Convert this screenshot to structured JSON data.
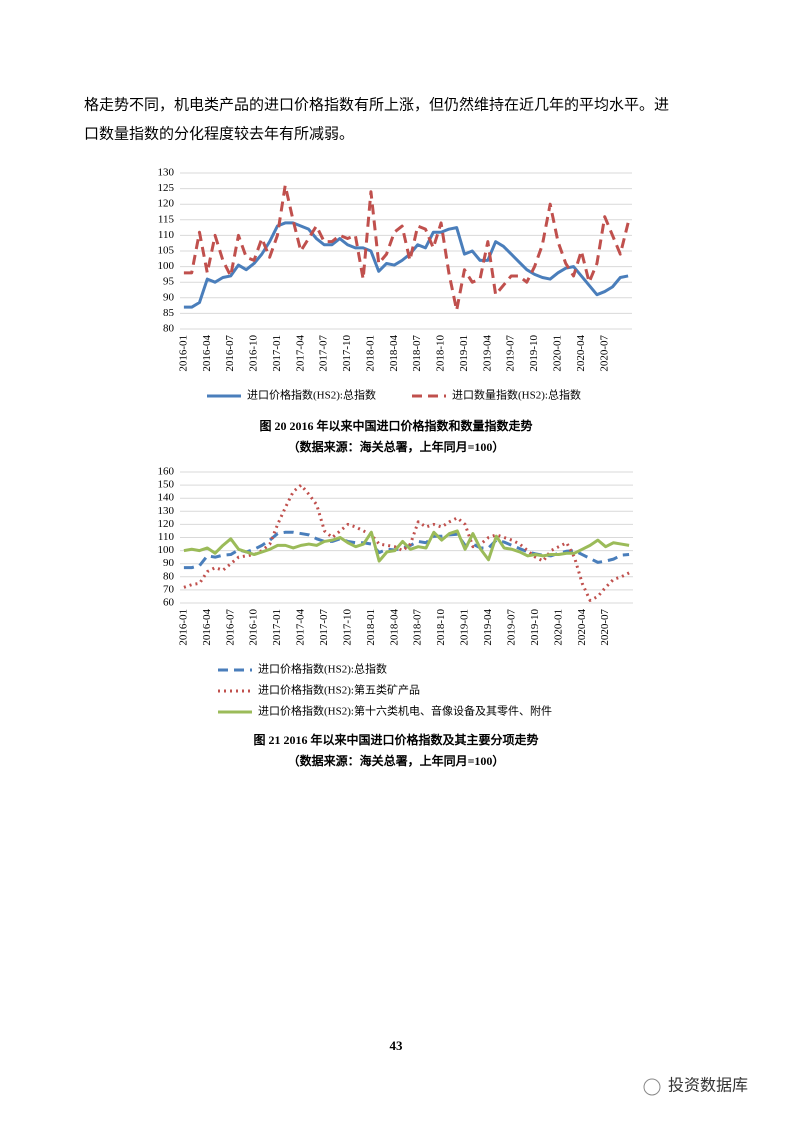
{
  "document": {
    "paragraph": [
      "格走势不同，机电类产品的进口价格指数有所上涨，但仍然维持在近几年的平均水平。进",
      "口数量指数的分化程度较去年有所减弱。"
    ],
    "page_number": "43",
    "watermark": "投资数据库"
  },
  "chart_data": [
    {
      "type": "line",
      "caption": "图 20 2016 年以来中国进口价格指数和数量指数走势",
      "source": "（数据来源：海关总署，上年同月=100）",
      "categories": [
        "2016-01",
        null,
        null,
        "2016-04",
        null,
        null,
        "2016-07",
        null,
        null,
        "2016-10",
        null,
        null,
        "2017-01",
        null,
        null,
        "2017-04",
        null,
        null,
        "2017-07",
        null,
        null,
        "2017-10",
        null,
        null,
        "2018-01",
        null,
        null,
        "2018-04",
        null,
        null,
        "2018-07",
        null,
        null,
        "2018-10",
        null,
        null,
        "2019-01",
        null,
        null,
        "2019-04",
        null,
        null,
        "2019-07",
        null,
        null,
        "2019-10",
        null,
        null,
        "2020-01",
        null,
        null,
        "2020-04",
        null,
        null,
        "2020-07",
        null,
        null,
        null
      ],
      "series": [
        {
          "name": "进口价格指数(HS2):总指数",
          "color": "#4a7ebb",
          "line_style": "solid",
          "values": [
            87,
            87,
            88.5,
            96,
            95,
            96.5,
            97,
            100.5,
            99,
            101,
            104,
            108,
            113,
            114,
            114,
            113,
            112,
            109,
            107,
            107,
            109,
            107,
            106,
            106,
            105,
            98.5,
            101,
            100.5,
            102,
            104,
            107,
            106,
            111,
            111,
            112,
            112.5,
            104,
            105,
            102,
            102,
            108,
            106.5,
            104,
            101.5,
            99,
            97.5,
            96.5,
            96,
            98,
            99.5,
            100,
            97,
            94,
            91,
            92,
            93.5,
            96.5,
            97
          ]
        },
        {
          "name": "进口数量指数(HS2):总指数",
          "color": "#c0504d",
          "line_style": "dashed",
          "values": [
            98,
            98,
            111,
            98,
            110,
            102,
            97,
            110,
            103,
            102,
            109,
            103,
            110,
            126,
            115,
            105,
            109,
            113,
            108,
            108,
            110,
            109,
            110,
            96,
            124,
            101,
            104,
            111,
            113,
            102,
            113,
            112,
            106,
            114,
            98,
            86,
            99,
            95,
            96,
            108,
            91,
            94,
            97,
            97,
            95,
            100,
            107,
            120,
            108,
            101,
            97,
            105,
            95,
            101,
            116,
            110,
            104,
            114
          ]
        }
      ],
      "ylim": [
        80,
        130
      ],
      "yticks": [
        80,
        85,
        90,
        95,
        100,
        105,
        110,
        115,
        120,
        125,
        130
      ],
      "grid": true,
      "legend": "bottom"
    },
    {
      "type": "line",
      "caption": "图 21 2016 年以来中国进口价格指数及其主要分项走势",
      "source": "（数据来源：海关总署，上年同月=100）",
      "categories": [
        "2016-01",
        null,
        null,
        "2016-04",
        null,
        null,
        "2016-07",
        null,
        null,
        "2016-10",
        null,
        null,
        "2017-01",
        null,
        null,
        "2017-04",
        null,
        null,
        "2017-07",
        null,
        null,
        "2017-10",
        null,
        null,
        "2018-01",
        null,
        null,
        "2018-04",
        null,
        null,
        "2018-07",
        null,
        null,
        "2018-10",
        null,
        null,
        "2019-01",
        null,
        null,
        "2019-04",
        null,
        null,
        "2019-07",
        null,
        null,
        "2019-10",
        null,
        null,
        "2020-01",
        null,
        null,
        "2020-04",
        null,
        null,
        "2020-07",
        null,
        null,
        null
      ],
      "series": [
        {
          "name": "进口价格指数(HS2):总指数",
          "color": "#4a7ebb",
          "line_style": "dashed",
          "values": [
            87,
            87,
            88.5,
            96,
            95,
            96.5,
            97,
            100.5,
            99,
            101,
            104,
            108,
            113,
            114,
            114,
            113,
            112,
            109,
            107,
            107,
            109,
            107,
            106,
            106,
            105,
            98.5,
            101,
            100.5,
            102,
            104,
            107,
            106,
            111,
            111,
            112,
            112.5,
            104,
            105,
            102,
            102,
            108,
            106.5,
            104,
            101.5,
            99,
            97.5,
            96.5,
            96,
            98,
            99.5,
            100,
            97,
            94,
            91,
            92,
            93.5,
            96.5,
            97
          ]
        },
        {
          "name": "进口价格指数(HS2):第五类矿产品",
          "color": "#c0504d",
          "line_style": "dotted",
          "values": [
            72,
            74,
            75,
            84,
            87,
            85,
            90,
            95,
            96,
            97,
            100,
            105,
            120,
            133,
            145,
            150,
            143,
            135,
            115,
            110,
            115,
            120,
            118,
            115,
            112,
            105,
            104,
            103,
            100,
            105,
            122,
            118,
            120,
            118,
            122,
            125,
            120,
            103,
            105,
            110,
            112,
            110,
            108,
            105,
            100,
            95,
            92,
            100,
            103,
            106,
            95,
            75,
            62,
            65,
            72,
            78,
            80,
            83
          ]
        },
        {
          "name": "进口价格指数(HS2):第十六类机电、音像设备及其零件、附件",
          "color": "#9bbb59",
          "line_style": "solid",
          "values": [
            100,
            101,
            100,
            102,
            98,
            104,
            109,
            101,
            99,
            97,
            99,
            101,
            104,
            104,
            102,
            104,
            105,
            104,
            107,
            108,
            110,
            106,
            103,
            105,
            114,
            92,
            99,
            100,
            107,
            101,
            103,
            102,
            114,
            108,
            113,
            115,
            101,
            113,
            101,
            93,
            111,
            102,
            101,
            99,
            96,
            97,
            96,
            97,
            97,
            98,
            98,
            101,
            104,
            108,
            103,
            106,
            105,
            104
          ]
        }
      ],
      "ylim": [
        60,
        160
      ],
      "yticks": [
        60,
        70,
        80,
        90,
        100,
        110,
        120,
        130,
        140,
        150,
        160
      ],
      "grid": true,
      "legend": "bottom"
    }
  ]
}
